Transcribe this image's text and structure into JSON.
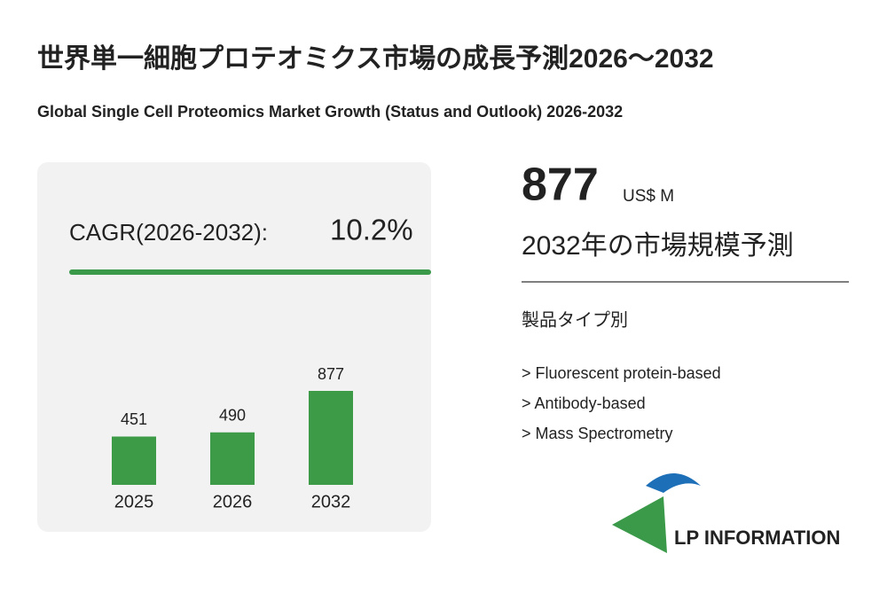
{
  "title": "世界単一細胞プロテオミクス市場の成長予測2026～2032",
  "subtitle": "Global Single Cell Proteomics Market Growth (Status and Outlook) 2026-2032",
  "cagr_label": "CAGR(2026-2032):",
  "cagr_value": "10.2%",
  "market_value": 877,
  "market_unit": "US$ M",
  "market_caption": "2032年の市場規模予測",
  "segment_heading": "製品タイプ別",
  "segments": [
    "> Fluorescent protein-based",
    "> Antibody-based",
    "> Mass Spectrometry"
  ],
  "logo_text": "LP INFORMATION",
  "chart_data": {
    "type": "bar",
    "categories": [
      "2025",
      "2026",
      "2032"
    ],
    "values": [
      451,
      490,
      877
    ],
    "color": "#3d9a47"
  }
}
